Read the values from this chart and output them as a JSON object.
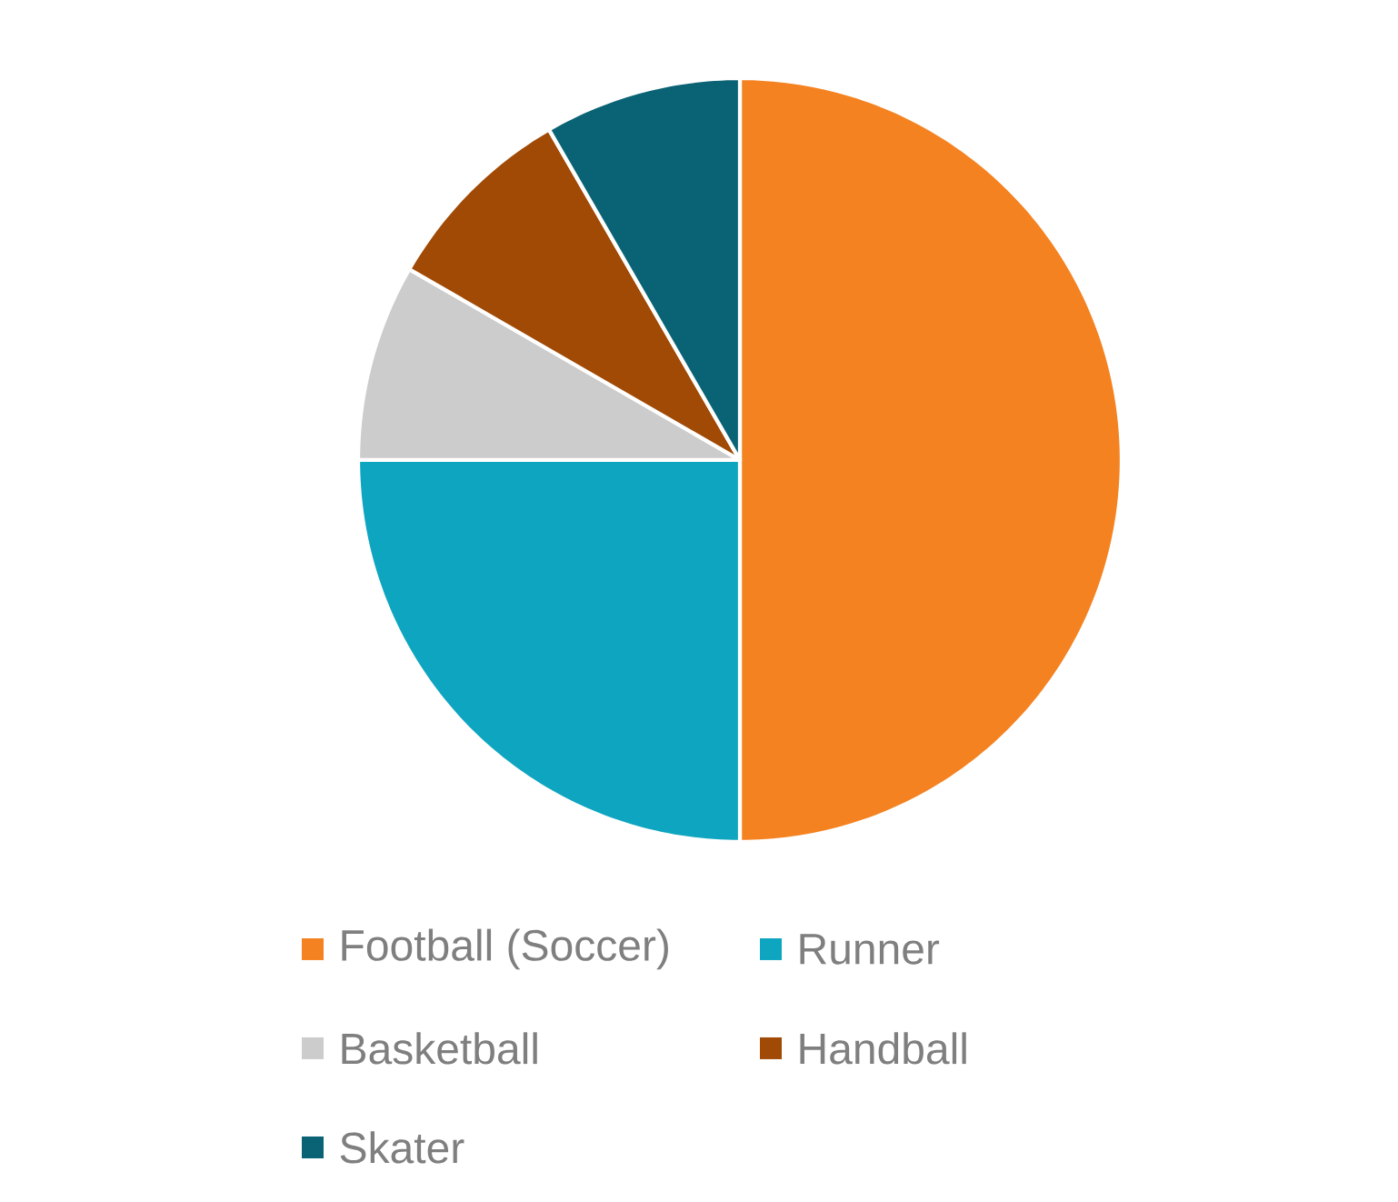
{
  "chart_data": {
    "type": "pie",
    "categories": [
      "Football (Soccer)",
      "Runner",
      "Basketball",
      "Handball",
      "Skater"
    ],
    "values": [
      50,
      25,
      8.33,
      8.33,
      8.34
    ],
    "colors": [
      "#f58220",
      "#0ea5c0",
      "#cccccc",
      "#a04a06",
      "#0a6374"
    ],
    "legend": "bottom"
  }
}
